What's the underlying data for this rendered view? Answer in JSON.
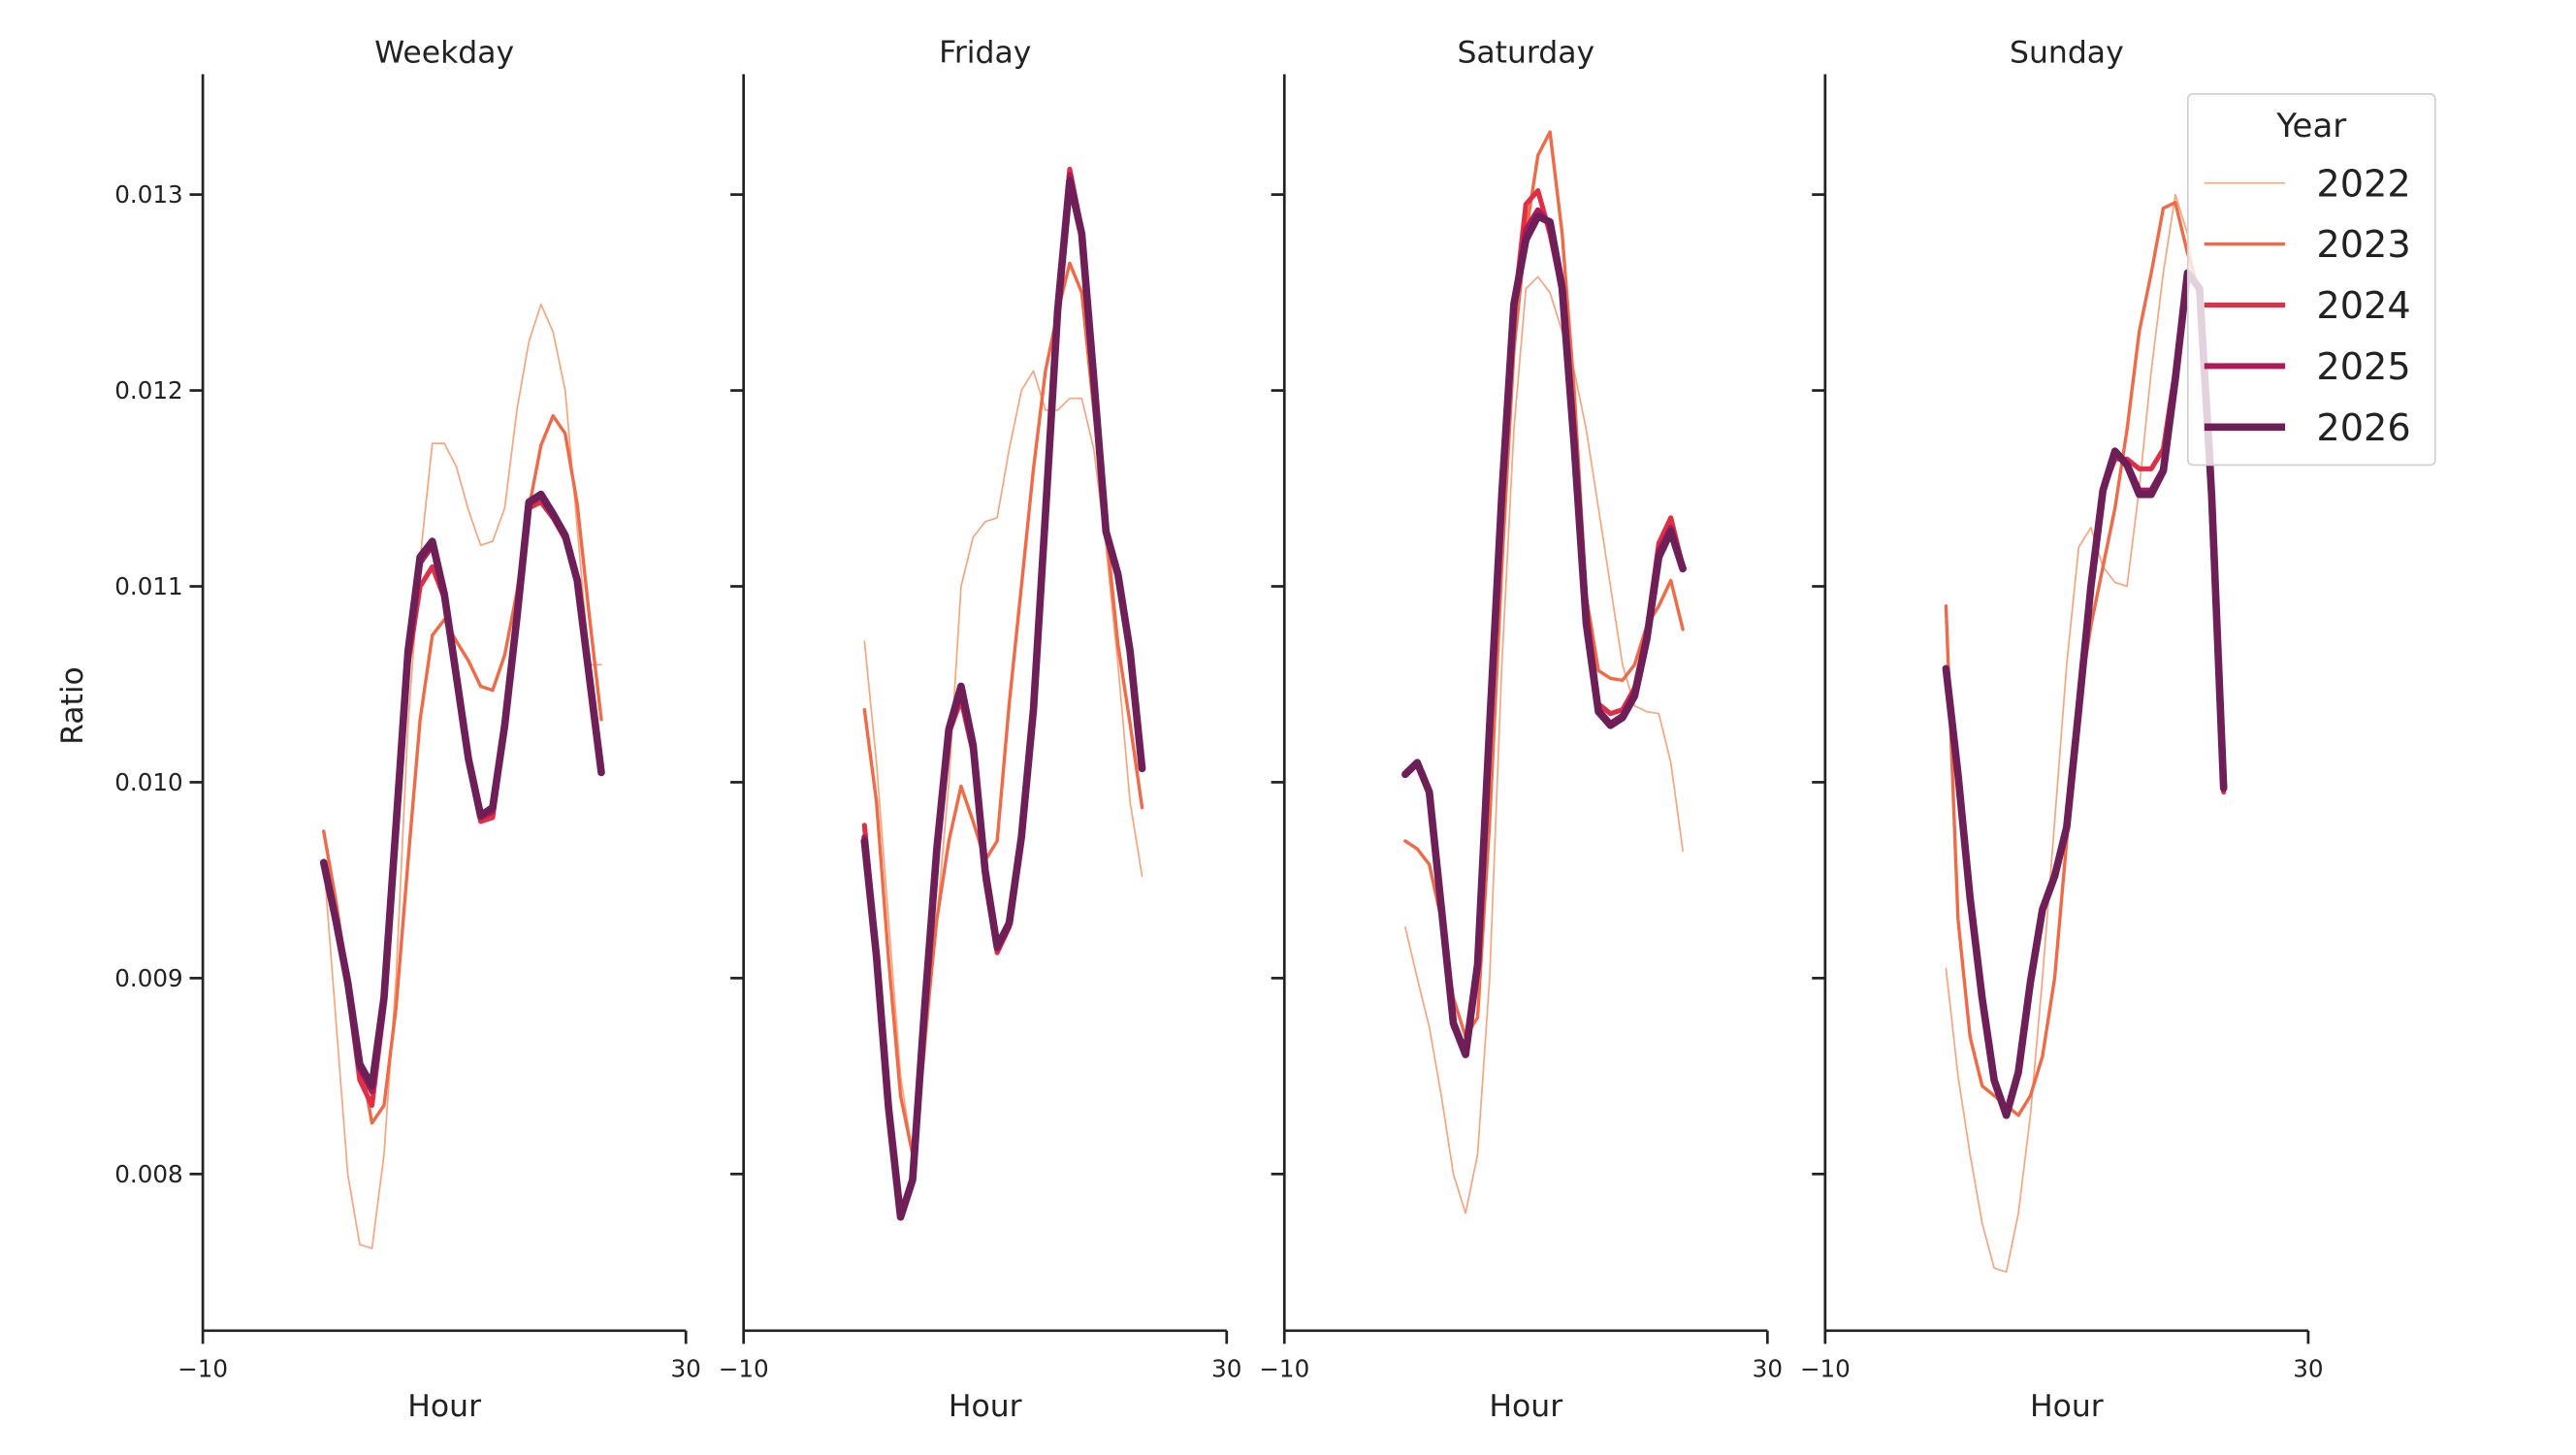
{
  "chart_data": {
    "type": "line",
    "ylabel": "Ratio",
    "ylim": [
      0.0072,
      0.01365
    ],
    "yticks": [
      "0.008",
      "0.009",
      "0.010",
      "0.011",
      "0.012",
      "0.013"
    ],
    "ytick_values": [
      0.008,
      0.009,
      0.01,
      0.011,
      0.012,
      0.013
    ],
    "xlim": [
      -10,
      30
    ],
    "xticks": [
      "−10",
      "30"
    ],
    "xtick_values": [
      -10,
      30
    ],
    "xlabel": "Hour",
    "grid": false,
    "legend": {
      "title": "Year",
      "placement": "top-right"
    },
    "x": [
      0,
      1,
      2,
      3,
      4,
      5,
      6,
      7,
      8,
      9,
      10,
      11,
      12,
      13,
      14,
      15,
      16,
      17,
      18,
      19,
      20,
      21,
      22,
      23
    ],
    "series_styles": [
      {
        "name": "2022",
        "color": "#f7a57f"
      },
      {
        "name": "2023",
        "color": "#f06a47"
      },
      {
        "name": "2024",
        "color": "#dd2f45"
      },
      {
        "name": "2025",
        "color": "#ad1a5a"
      },
      {
        "name": "2026",
        "color": "#6e1f57"
      }
    ],
    "panels": [
      {
        "title": "Weekday",
        "series": [
          {
            "name": "2022",
            "values": [
              0.0096,
              0.0088,
              0.008,
              0.00764,
              0.00762,
              0.0081,
              0.009,
              0.0103,
              0.01114,
              0.01173,
              0.01173,
              0.01161,
              0.01139,
              0.01121,
              0.01123,
              0.0114,
              0.0119,
              0.01225,
              0.01244,
              0.0123,
              0.012,
              0.0113,
              0.0106,
              0.0106
            ]
          },
          {
            "name": "2023",
            "values": [
              0.00975,
              0.0094,
              0.009,
              0.0086,
              0.00826,
              0.00835,
              0.00885,
              0.0096,
              0.01032,
              0.01075,
              0.01083,
              0.01072,
              0.01062,
              0.01049,
              0.01047,
              0.01065,
              0.01097,
              0.0114,
              0.01172,
              0.01187,
              0.01178,
              0.01142,
              0.01085,
              0.01032
            ]
          },
          {
            "name": "2024",
            "values": [
              0.00959,
              0.0093,
              0.00895,
              0.00848,
              0.00835,
              0.00885,
              0.00975,
              0.0106,
              0.011,
              0.0111,
              0.01094,
              0.01052,
              0.0101,
              0.0098,
              0.00982,
              0.01028,
              0.01084,
              0.0114,
              0.01143,
              0.01135,
              0.01124,
              0.01102,
              0.01054,
              0.01005
            ]
          },
          {
            "name": "2025",
            "values": [
              0.00959,
              0.0093,
              0.00897,
              0.00854,
              0.00842,
              0.00889,
              0.00977,
              0.01066,
              0.01112,
              0.01121,
              0.01095,
              0.01053,
              0.01011,
              0.00982,
              0.00985,
              0.01029,
              0.01084,
              0.01142,
              0.01146,
              0.01136,
              0.01125,
              0.01103,
              0.01054,
              0.01005
            ]
          },
          {
            "name": "2026",
            "values": [
              0.00959,
              0.0093,
              0.00898,
              0.00856,
              0.00845,
              0.0089,
              0.00978,
              0.01067,
              0.01115,
              0.01123,
              0.01096,
              0.01054,
              0.01012,
              0.00983,
              0.00987,
              0.01029,
              0.01084,
              0.01143,
              0.01147,
              0.01137,
              0.01126,
              0.01103,
              0.01054,
              0.01005
            ]
          }
        ]
      },
      {
        "title": "Friday",
        "series": [
          {
            "name": "2022",
            "values": [
              0.01072,
              0.0101,
              0.0093,
              0.0085,
              0.0081,
              0.0086,
              0.0093,
              0.01,
              0.011,
              0.01125,
              0.01133,
              0.01135,
              0.0117,
              0.012,
              0.0121,
              0.0119,
              0.0119,
              0.01196,
              0.01196,
              0.0117,
              0.0112,
              0.0106,
              0.0099,
              0.00952
            ]
          },
          {
            "name": "2023",
            "values": [
              0.01037,
              0.0099,
              0.0091,
              0.0084,
              0.0081,
              0.0087,
              0.0093,
              0.0097,
              0.00998,
              0.0098,
              0.0096,
              0.0097,
              0.0104,
              0.011,
              0.0116,
              0.0121,
              0.0124,
              0.01265,
              0.0125,
              0.0119,
              0.0113,
              0.0107,
              0.0103,
              0.00987
            ]
          },
          {
            "name": "2024",
            "values": [
              0.00978,
              0.00915,
              0.00836,
              0.0078,
              0.00798,
              0.00887,
              0.00965,
              0.01025,
              0.01042,
              0.01015,
              0.0095,
              0.00913,
              0.00926,
              0.0097,
              0.01036,
              0.01138,
              0.01243,
              0.01313,
              0.01282,
              0.01207,
              0.01128,
              0.01106,
              0.01067,
              0.01007
            ]
          },
          {
            "name": "2025",
            "values": [
              0.00972,
              0.00912,
              0.00835,
              0.00779,
              0.00797,
              0.00886,
              0.00966,
              0.01026,
              0.01046,
              0.01017,
              0.00953,
              0.00915,
              0.00927,
              0.00971,
              0.01037,
              0.01137,
              0.01242,
              0.0131,
              0.01281,
              0.01206,
              0.01128,
              0.01106,
              0.01067,
              0.01007
            ]
          },
          {
            "name": "2026",
            "values": [
              0.0097,
              0.00911,
              0.00834,
              0.00778,
              0.00797,
              0.00886,
              0.00966,
              0.01027,
              0.01049,
              0.01019,
              0.00955,
              0.00916,
              0.00928,
              0.00972,
              0.01037,
              0.01137,
              0.01241,
              0.01307,
              0.0128,
              0.01206,
              0.01128,
              0.01106,
              0.01067,
              0.01007
            ]
          }
        ]
      },
      {
        "title": "Saturday",
        "series": [
          {
            "name": "2022",
            "values": [
              0.00926,
              0.009,
              0.00875,
              0.0084,
              0.008,
              0.0078,
              0.0081,
              0.009,
              0.0106,
              0.0118,
              0.01252,
              0.01258,
              0.0125,
              0.0123,
              0.0121,
              0.0118,
              0.0114,
              0.011,
              0.0106,
              0.01039,
              0.01036,
              0.01035,
              0.0101,
              0.00965
            ]
          },
          {
            "name": "2023",
            "values": [
              0.0097,
              0.00966,
              0.00958,
              0.0093,
              0.0089,
              0.0087,
              0.0088,
              0.0098,
              0.0111,
              0.0122,
              0.0128,
              0.0132,
              0.01332,
              0.0128,
              0.012,
              0.01095,
              0.01057,
              0.01053,
              0.01052,
              0.0106,
              0.0108,
              0.0109,
              0.01103,
              0.01078
            ]
          },
          {
            "name": "2024",
            "values": [
              0.01004,
              0.0101,
              0.00995,
              0.00936,
              0.00875,
              0.00862,
              0.00905,
              0.01025,
              0.01145,
              0.0124,
              0.01295,
              0.01302,
              0.0128,
              0.0125,
              0.0117,
              0.0109,
              0.0104,
              0.01035,
              0.01037,
              0.01048,
              0.01077,
              0.01122,
              0.01135,
              0.0111
            ]
          },
          {
            "name": "2025",
            "values": [
              0.01004,
              0.0101,
              0.00995,
              0.00936,
              0.00876,
              0.00861,
              0.00906,
              0.01027,
              0.01146,
              0.01243,
              0.01282,
              0.01292,
              0.01285,
              0.01251,
              0.01171,
              0.01083,
              0.01037,
              0.0103,
              0.01034,
              0.01046,
              0.01075,
              0.01118,
              0.0113,
              0.0111
            ]
          },
          {
            "name": "2026",
            "values": [
              0.01004,
              0.0101,
              0.00995,
              0.00936,
              0.00877,
              0.00861,
              0.00907,
              0.01029,
              0.01147,
              0.01244,
              0.01277,
              0.01289,
              0.01286,
              0.01252,
              0.01172,
              0.01081,
              0.01036,
              0.01029,
              0.01033,
              0.01044,
              0.01073,
              0.01115,
              0.01128,
              0.01109
            ]
          }
        ]
      },
      {
        "title": "Sunday",
        "series": [
          {
            "name": "2022",
            "values": [
              0.00905,
              0.0085,
              0.0081,
              0.00775,
              0.00752,
              0.0075,
              0.0078,
              0.0083,
              0.009,
              0.0098,
              0.0106,
              0.0112,
              0.0113,
              0.0111,
              0.01102,
              0.011,
              0.0115,
              0.0121,
              0.0126,
              0.013,
              0.0128,
              0.0124,
              0.0115,
              0.01
            ]
          },
          {
            "name": "2023",
            "values": [
              0.0109,
              0.0093,
              0.0087,
              0.00845,
              0.0084,
              0.00835,
              0.0083,
              0.0084,
              0.0086,
              0.009,
              0.0097,
              0.0104,
              0.0108,
              0.0111,
              0.0114,
              0.0118,
              0.0123,
              0.0126,
              0.01293,
              0.01296,
              0.0127,
              0.0125,
              0.0117,
              0.01
            ]
          },
          {
            "name": "2024",
            "values": [
              0.01058,
              0.01004,
              0.00941,
              0.0089,
              0.00848,
              0.0083,
              0.00852,
              0.00898,
              0.00935,
              0.00952,
              0.00977,
              0.01037,
              0.011,
              0.01149,
              0.01165,
              0.01165,
              0.0116,
              0.0116,
              0.0117,
              0.0121,
              0.0126,
              0.01252,
              0.01147,
              0.00995
            ]
          },
          {
            "name": "2025",
            "values": [
              0.01058,
              0.01004,
              0.00941,
              0.0089,
              0.00848,
              0.0083,
              0.00852,
              0.00898,
              0.00935,
              0.00952,
              0.00977,
              0.01037,
              0.011,
              0.01149,
              0.01168,
              0.01163,
              0.01149,
              0.01149,
              0.0116,
              0.01207,
              0.0126,
              0.01252,
              0.01147,
              0.00997
            ]
          },
          {
            "name": "2026",
            "values": [
              0.01058,
              0.01004,
              0.00941,
              0.0089,
              0.00848,
              0.0083,
              0.00852,
              0.00898,
              0.00935,
              0.00952,
              0.00977,
              0.01037,
              0.011,
              0.01149,
              0.01169,
              0.01162,
              0.01147,
              0.01147,
              0.01159,
              0.01206,
              0.0126,
              0.01252,
              0.01147,
              0.00997
            ]
          }
        ]
      }
    ]
  }
}
